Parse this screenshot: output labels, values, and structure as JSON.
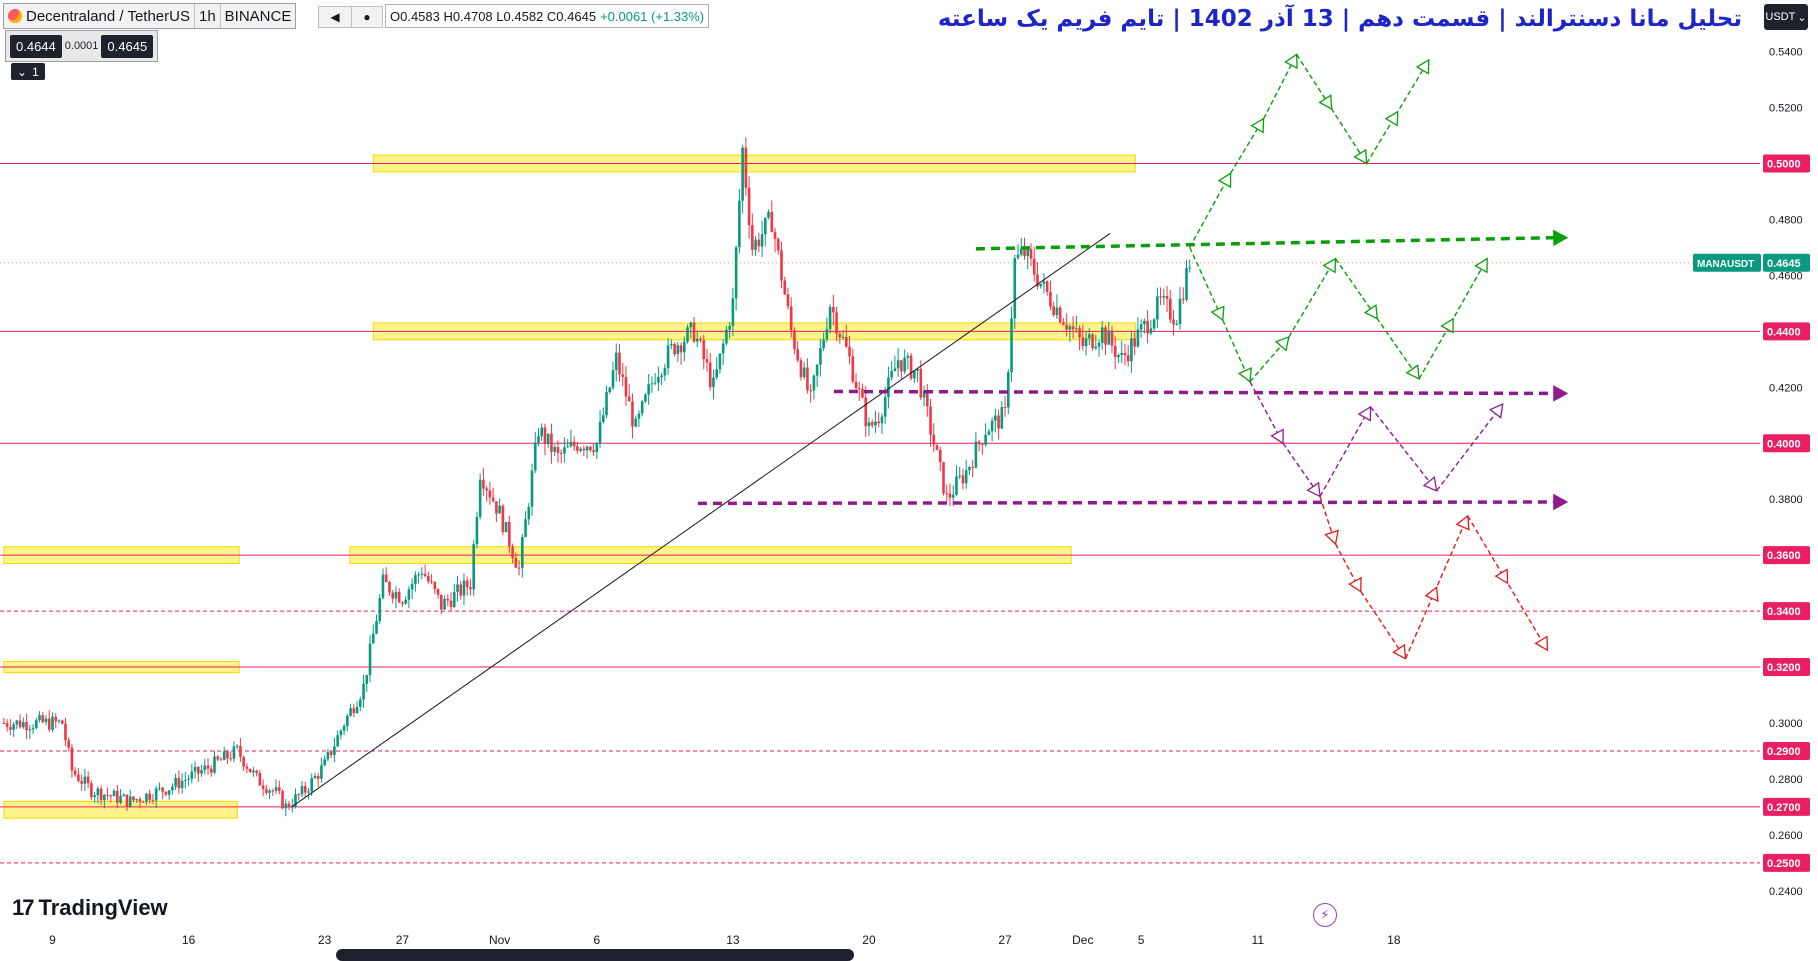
{
  "header": {
    "symbol": "Decentraland / TetherUS",
    "interval": "1h",
    "exchange": "BINANCE",
    "open": "O0.4583",
    "high": "H0.4708",
    "low": "L0.4582",
    "close": "C0.4645",
    "change": "+0.0061 (+1.33%)",
    "play_icon": "play-icon",
    "dot_icon": "dot-icon"
  },
  "trade_box": {
    "sell": "0.4644",
    "spread": "0.0001",
    "buy": "0.4645"
  },
  "layout_control": {
    "label": "1",
    "icon": "chevron-down-icon"
  },
  "headline": "تحلیل مانا دسنترالند | قسمت دهم | 13 آذر 1402 | تایم فریم یک ساعته",
  "currency_button": {
    "label": "USDT",
    "icon": "chevron-down-icon"
  },
  "branding": {
    "name": "TradingView",
    "mark": "17"
  },
  "colors": {
    "up": "#089981",
    "down": "#f23645",
    "level_line": "#e91e63",
    "zone": "#ffeb3b",
    "green_path": "#0a9e0a",
    "purple_path": "#8e1b8e",
    "red_path": "#e01b1b",
    "headline": "#1d24c8",
    "price_tag": "#e91e63",
    "current_tag": "#089981"
  },
  "chart_data": {
    "type": "candlestick",
    "symbol": "MANAUSDT",
    "timeframe": "1h",
    "ylim": [
      0.232,
      0.557
    ],
    "y_ticks": [
      "0.5400",
      "0.5200",
      "0.4800",
      "0.4600",
      "0.4200",
      "0.3800",
      "0.3000",
      "0.2800",
      "0.2600",
      "0.2400"
    ],
    "x_ticks": [
      "9",
      "16",
      "23",
      "27",
      "Nov",
      "6",
      "13",
      "20",
      "27",
      "Dec",
      "5",
      "11",
      "18"
    ],
    "x_tick_days": [
      0,
      7,
      14,
      18,
      23,
      28,
      35,
      42,
      49,
      53,
      56,
      62,
      69
    ],
    "price_tags": [
      "0.5000",
      "0.4400",
      "0.4000",
      "0.3600",
      "0.3400",
      "0.3200",
      "0.2900",
      "0.2700",
      "0.2500"
    ],
    "current_price": {
      "label": "MANAUSDT",
      "value": "0.4645"
    },
    "solid_levels": [
      0.5,
      0.44,
      0.4,
      0.36,
      0.32,
      0.27
    ],
    "dashed_levels": [
      0.34,
      0.29,
      0.25
    ],
    "zones": [
      {
        "y0": 0.497,
        "y1": 0.503,
        "d0": 16.5,
        "d1": 55.7
      },
      {
        "y0": 0.437,
        "y1": 0.443,
        "d0": 16.5,
        "d1": 55.7
      },
      {
        "y0": 0.357,
        "y1": 0.363,
        "d0": 15.3,
        "d1": 52.4
      },
      {
        "y0": 0.357,
        "y1": 0.363,
        "d0": -2.5,
        "d1": 9.6
      },
      {
        "y0": 0.318,
        "y1": 0.322,
        "d0": -2.5,
        "d1": 9.6
      },
      {
        "y0": 0.266,
        "y1": 0.272,
        "d0": -2.5,
        "d1": 9.5
      }
    ],
    "price_path": [
      [
        -2.5,
        0.3
      ],
      [
        0.5,
        0.3
      ],
      [
        1,
        0.283
      ],
      [
        2,
        0.276
      ],
      [
        4,
        0.272
      ],
      [
        6,
        0.277
      ],
      [
        8,
        0.284
      ],
      [
        9.5,
        0.29
      ],
      [
        10.5,
        0.28
      ],
      [
        11.5,
        0.275
      ],
      [
        12,
        0.27
      ],
      [
        13,
        0.276
      ],
      [
        14,
        0.285
      ],
      [
        15,
        0.3
      ],
      [
        16,
        0.313
      ],
      [
        17,
        0.35
      ],
      [
        18,
        0.345
      ],
      [
        19,
        0.355
      ],
      [
        20,
        0.342
      ],
      [
        21.5,
        0.35
      ],
      [
        22,
        0.39
      ],
      [
        23,
        0.375
      ],
      [
        24,
        0.355
      ],
      [
        25,
        0.405
      ],
      [
        26,
        0.395
      ],
      [
        27,
        0.4
      ],
      [
        28,
        0.4
      ],
      [
        28.5,
        0.415
      ],
      [
        29,
        0.43
      ],
      [
        30,
        0.405
      ],
      [
        31,
        0.425
      ],
      [
        32,
        0.435
      ],
      [
        33,
        0.44
      ],
      [
        34,
        0.42
      ],
      [
        35,
        0.45
      ],
      [
        35.5,
        0.505
      ],
      [
        36,
        0.47
      ],
      [
        37,
        0.48
      ],
      [
        38,
        0.44
      ],
      [
        39,
        0.415
      ],
      [
        40,
        0.45
      ],
      [
        41,
        0.43
      ],
      [
        42,
        0.405
      ],
      [
        42.5,
        0.41
      ],
      [
        43.5,
        0.43
      ],
      [
        44.5,
        0.425
      ],
      [
        45,
        0.41
      ],
      [
        46,
        0.38
      ],
      [
        47,
        0.39
      ],
      [
        48,
        0.405
      ],
      [
        49,
        0.41
      ],
      [
        49.5,
        0.465
      ],
      [
        50,
        0.468
      ],
      [
        51,
        0.455
      ],
      [
        52,
        0.445
      ],
      [
        53,
        0.435
      ],
      [
        54,
        0.44
      ],
      [
        55,
        0.43
      ],
      [
        56,
        0.44
      ],
      [
        57,
        0.45
      ],
      [
        57.8,
        0.445
      ],
      [
        58.5,
        0.465
      ]
    ],
    "trendline": [
      [
        12.3,
        0.27
      ],
      [
        54.4,
        0.475
      ]
    ],
    "scenario_lines": [
      {
        "color": "green",
        "dashed": true,
        "thick": true,
        "arrow": true,
        "points": [
          [
            47.5,
            0.4695
          ],
          [
            77.9,
            0.4735
          ]
        ]
      },
      {
        "color": "purple",
        "dashed": true,
        "thick": true,
        "arrow": true,
        "points": [
          [
            40.2,
            0.4185
          ],
          [
            77.9,
            0.4178
          ]
        ]
      },
      {
        "color": "purple",
        "dashed": true,
        "thick": true,
        "arrow": true,
        "points": [
          [
            33.2,
            0.3785
          ],
          [
            77.9,
            0.379
          ]
        ]
      }
    ],
    "scenario_paths": [
      {
        "color": "green",
        "points": [
          [
            58.5,
            0.47
          ],
          [
            60.6,
            0.4965
          ],
          [
            62.3,
            0.516
          ],
          [
            64,
            0.539
          ],
          [
            67.6,
            0.5
          ],
          [
            70.8,
            0.537
          ]
        ]
      },
      {
        "color": "green",
        "points": [
          [
            58.5,
            0.47
          ],
          [
            60.2,
            0.444
          ],
          [
            61.6,
            0.422
          ],
          [
            63.6,
            0.438
          ],
          [
            66,
            0.466
          ],
          [
            70.3,
            0.423
          ],
          [
            73.8,
            0.466
          ]
        ]
      },
      {
        "color": "purple",
        "points": [
          [
            61.6,
            0.422
          ],
          [
            63.3,
            0.4
          ],
          [
            65.2,
            0.381
          ],
          [
            67.8,
            0.413
          ],
          [
            71.2,
            0.383
          ],
          [
            74.6,
            0.414
          ]
        ]
      },
      {
        "color": "red",
        "points": [
          [
            65.2,
            0.381
          ],
          [
            66,
            0.364
          ],
          [
            67.3,
            0.347
          ],
          [
            69.6,
            0.323
          ],
          [
            72.8,
            0.374
          ],
          [
            76.9,
            0.326
          ]
        ]
      }
    ]
  }
}
